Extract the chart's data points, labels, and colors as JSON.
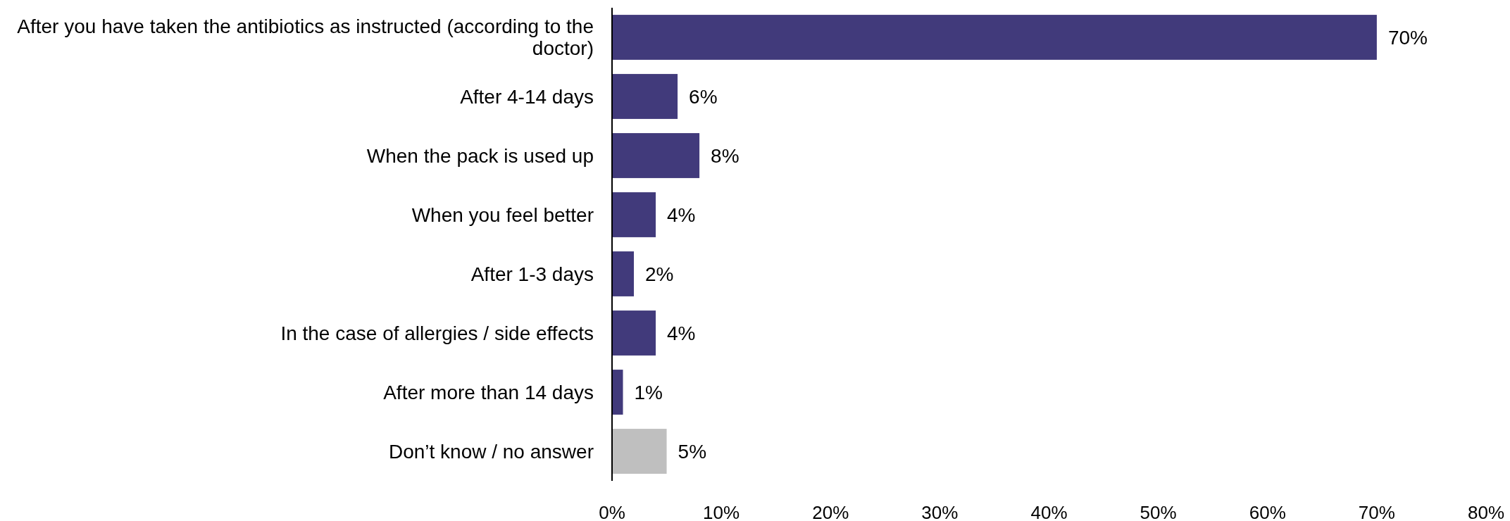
{
  "chart_data": {
    "type": "bar",
    "orientation": "horizontal",
    "categories": [
      "After you have taken the antibiotics as instructed (according to the doctor)",
      "After 4-14 days",
      "When the pack is used up",
      "When you feel better",
      "After 1-3 days",
      "In the case of allergies / side effects",
      "After more than 14 days",
      "Don’t know / no answer"
    ],
    "values": [
      70,
      6,
      8,
      4,
      2,
      4,
      1,
      5
    ],
    "colors": [
      "#413a7b",
      "#413a7b",
      "#413a7b",
      "#413a7b",
      "#413a7b",
      "#413a7b",
      "#413a7b",
      "#bfbfbf"
    ],
    "value_labels": [
      "70%",
      "6%",
      "8%",
      "4%",
      "2%",
      "4%",
      "1%",
      "5%"
    ],
    "xlim": [
      0,
      80
    ],
    "xticks": [
      {
        "value": 0,
        "label": "0%"
      },
      {
        "value": 10,
        "label": "10%"
      },
      {
        "value": 20,
        "label": "20%"
      },
      {
        "value": 30,
        "label": "30%"
      },
      {
        "value": 40,
        "label": "40%"
      },
      {
        "value": 50,
        "label": "50%"
      },
      {
        "value": 60,
        "label": "60%"
      },
      {
        "value": 70,
        "label": "70%"
      },
      {
        "value": 80,
        "label": "80%"
      }
    ]
  }
}
